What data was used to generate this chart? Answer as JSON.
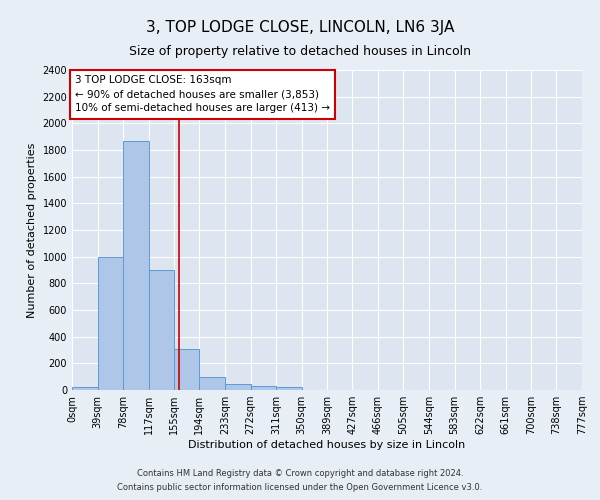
{
  "title": "3, TOP LODGE CLOSE, LINCOLN, LN6 3JA",
  "subtitle": "Size of property relative to detached houses in Lincoln",
  "xlabel": "Distribution of detached houses by size in Lincoln",
  "ylabel": "Number of detached properties",
  "bar_color": "#aec6e8",
  "bar_edge_color": "#5b9bd5",
  "background_color": "#e8eef5",
  "plot_background_color": "#dde6f0",
  "grid_color": "#ffffff",
  "red_line_x": 163,
  "annotation_text1": "3 TOP LODGE CLOSE: 163sqm",
  "annotation_text2": "← 90% of detached houses are smaller (3,853)",
  "annotation_text3": "10% of semi-detached houses are larger (413) →",
  "annotation_box_color": "#ffffff",
  "annotation_border_color": "#cc0000",
  "red_line_color": "#cc0000",
  "bin_edges": [
    0,
    39,
    78,
    117,
    155,
    194,
    233,
    272,
    311,
    350,
    389,
    427,
    466,
    505,
    544,
    583,
    622,
    661,
    700,
    738,
    777
  ],
  "bar_heights": [
    20,
    1000,
    1870,
    900,
    310,
    100,
    45,
    30,
    20,
    0,
    0,
    0,
    0,
    0,
    0,
    0,
    0,
    0,
    0,
    0
  ],
  "ylim": [
    0,
    2400
  ],
  "yticks": [
    0,
    200,
    400,
    600,
    800,
    1000,
    1200,
    1400,
    1600,
    1800,
    2000,
    2200,
    2400
  ],
  "footer_text1": "Contains HM Land Registry data © Crown copyright and database right 2024.",
  "footer_text2": "Contains public sector information licensed under the Open Government Licence v3.0.",
  "title_fontsize": 11,
  "subtitle_fontsize": 9,
  "tick_label_fontsize": 7,
  "axis_label_fontsize": 8,
  "annotation_fontsize": 7.5
}
